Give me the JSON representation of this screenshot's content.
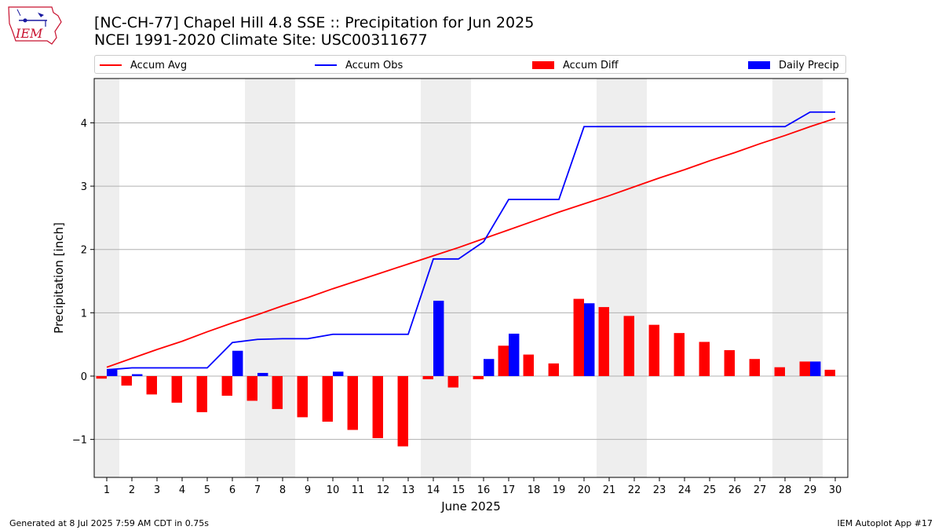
{
  "logo": {
    "text": "IEM",
    "icon": "iem-logo-icon",
    "color": "#c8102e"
  },
  "header": {
    "title_line1": "[NC-CH-77] Chapel Hill 4.8 SSE :: Precipitation for Jun 2025",
    "title_line2": "NCEI 1991-2020 Climate Site: USC00311677"
  },
  "legend": [
    {
      "label": "Accum Avg",
      "kind": "line",
      "color": "#ff0000"
    },
    {
      "label": "Accum Obs",
      "kind": "line",
      "color": "#0000ff"
    },
    {
      "label": "Accum Diff",
      "kind": "patch",
      "color": "#ff0000"
    },
    {
      "label": "Daily Precip",
      "kind": "patch",
      "color": "#0000ff"
    }
  ],
  "footer": {
    "left": "Generated at 8 Jul 2025 7:59 AM CDT in 0.75s",
    "right": "IEM Autoplot App #17"
  },
  "chart_data": {
    "type": "bar",
    "xlabel": "June 2025",
    "ylabel": "Precipitation [inch]",
    "xlim": [
      0.5,
      30.5
    ],
    "ylim": [
      -1.6,
      4.7
    ],
    "yticks": [
      -1,
      0,
      1,
      2,
      3,
      4
    ],
    "ytick_labels": [
      "−1",
      "0",
      "1",
      "2",
      "3",
      "4"
    ],
    "grid": "horizontal",
    "weekend_shading_color": "#eeeeee",
    "weekend_days": [
      1,
      7,
      8,
      14,
      15,
      21,
      22,
      28,
      29
    ],
    "days": [
      1,
      2,
      3,
      4,
      5,
      6,
      7,
      8,
      9,
      10,
      11,
      12,
      13,
      14,
      15,
      16,
      17,
      18,
      19,
      20,
      21,
      22,
      23,
      24,
      25,
      26,
      27,
      28,
      29,
      30
    ],
    "series": [
      {
        "name": "Accum Avg",
        "kind": "line",
        "color": "#ff0000",
        "values": [
          0.14,
          0.28,
          0.42,
          0.55,
          0.7,
          0.84,
          0.97,
          1.11,
          1.24,
          1.38,
          1.51,
          1.64,
          1.77,
          1.9,
          2.03,
          2.17,
          2.31,
          2.45,
          2.59,
          2.72,
          2.85,
          2.99,
          3.13,
          3.26,
          3.4,
          3.53,
          3.67,
          3.8,
          3.94,
          4.07
        ]
      },
      {
        "name": "Accum Obs",
        "kind": "line",
        "color": "#0000ff",
        "values": [
          0.1,
          0.13,
          0.13,
          0.13,
          0.13,
          0.53,
          0.58,
          0.59,
          0.59,
          0.66,
          0.66,
          0.66,
          0.66,
          1.85,
          1.85,
          2.12,
          2.79,
          2.79,
          2.79,
          3.94,
          3.94,
          3.94,
          3.94,
          3.94,
          3.94,
          3.94,
          3.94,
          3.94,
          4.17,
          4.17
        ]
      },
      {
        "name": "Accum Diff",
        "kind": "bar",
        "color": "#ff0000",
        "values": [
          -0.04,
          -0.15,
          -0.29,
          -0.42,
          -0.57,
          -0.31,
          -0.39,
          -0.52,
          -0.65,
          -0.72,
          -0.85,
          -0.98,
          -1.11,
          -0.05,
          -0.18,
          -0.05,
          0.48,
          0.34,
          0.2,
          1.22,
          1.09,
          0.95,
          0.81,
          0.68,
          0.54,
          0.41,
          0.27,
          0.14,
          0.23,
          0.1
        ]
      },
      {
        "name": "Daily Precip",
        "kind": "bar",
        "color": "#0000ff",
        "values": [
          0.1,
          0.03,
          0,
          0,
          0,
          0.4,
          0.05,
          0,
          0,
          0.07,
          0,
          0,
          0,
          1.19,
          0,
          0.27,
          0.67,
          0,
          0,
          1.15,
          0,
          0,
          0,
          0,
          0,
          0,
          0,
          0,
          0.23,
          0
        ]
      }
    ]
  }
}
